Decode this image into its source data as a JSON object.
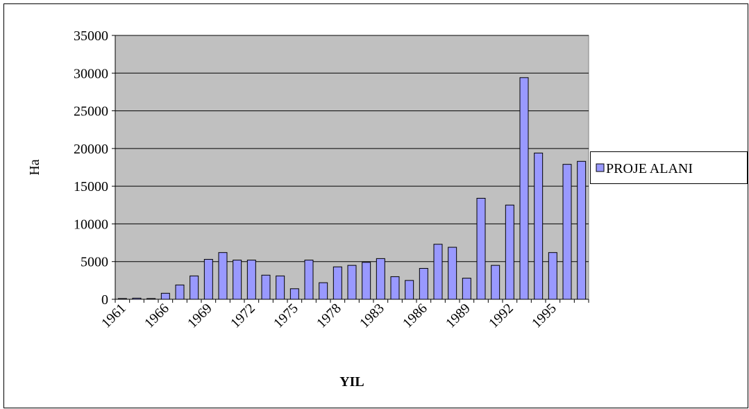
{
  "chart_data": {
    "type": "bar",
    "x_label": "YIL",
    "y_label": "Ha",
    "categories": [
      "1961",
      null,
      null,
      "1966",
      null,
      null,
      "1969",
      null,
      null,
      "1972",
      null,
      null,
      "1975",
      null,
      null,
      "1978",
      null,
      null,
      "1983",
      null,
      null,
      "1986",
      null,
      null,
      "1989",
      null,
      null,
      "1992",
      null,
      null,
      "1995",
      null,
      null
    ],
    "series": [
      {
        "name": "PROJE ALANI",
        "color": "#9999ff",
        "values": [
          100,
          150,
          100,
          800,
          1900,
          3100,
          5300,
          6200,
          5200,
          5200,
          3200,
          3100,
          1400,
          5200,
          2200,
          4300,
          4500,
          4900,
          5400,
          3000,
          2500,
          4100,
          7300,
          6900,
          2800,
          13400,
          4500,
          12500,
          29400,
          19400,
          6200,
          17900,
          18300
        ]
      }
    ],
    "ylim": [
      0,
      35000
    ],
    "yticks": [
      0,
      5000,
      10000,
      15000,
      20000,
      25000,
      30000,
      35000
    ],
    "grid": true,
    "legend": "right"
  }
}
